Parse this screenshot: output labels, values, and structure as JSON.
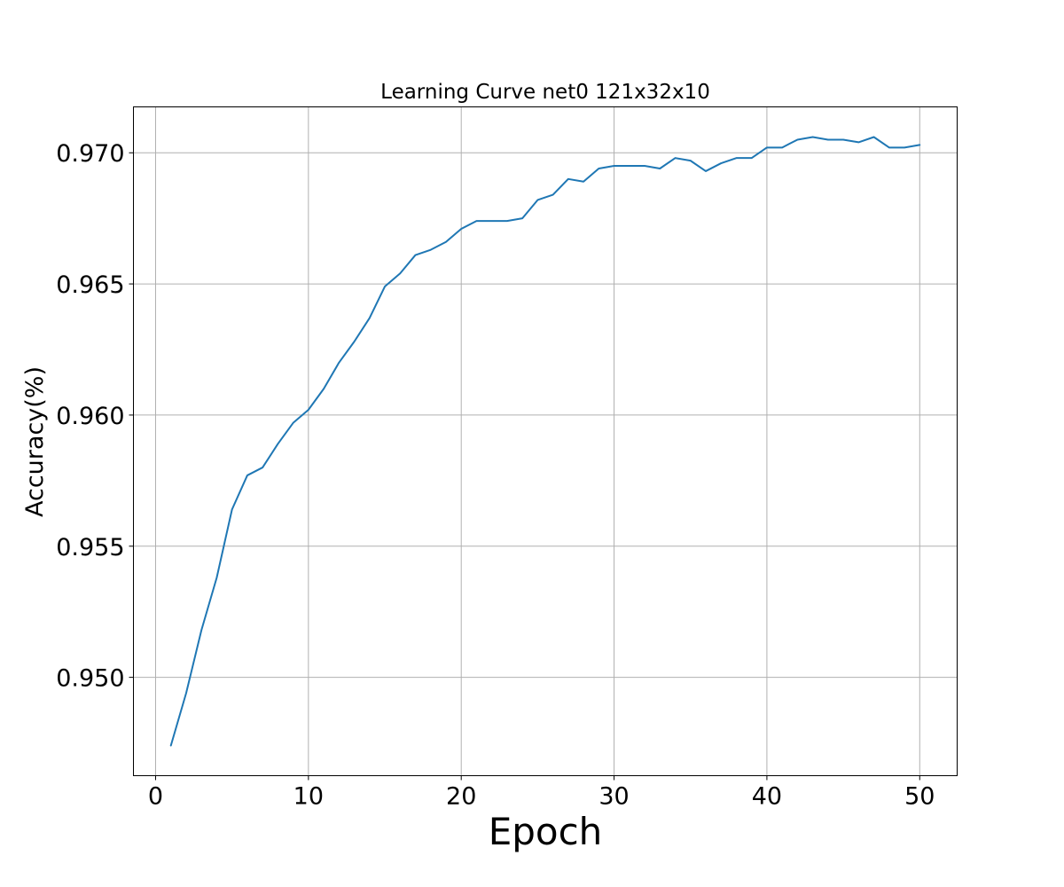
{
  "chart_data": {
    "type": "line",
    "title": "Learning Curve net0 121x32x10",
    "xlabel": "Epoch",
    "ylabel": "Accuracy(%)",
    "xlim": [
      -1.45,
      52.45
    ],
    "ylim": [
      0.94625,
      0.97175
    ],
    "xticks": [
      0,
      10,
      20,
      30,
      40,
      50
    ],
    "xtick_labels": [
      "0",
      "10",
      "20",
      "30",
      "40",
      "50"
    ],
    "yticks": [
      0.95,
      0.955,
      0.96,
      0.965,
      0.97
    ],
    "ytick_labels": [
      "0.950",
      "0.955",
      "0.960",
      "0.965",
      "0.970"
    ],
    "grid": true,
    "series": [
      {
        "color": "#1f77b4",
        "x": [
          1,
          2,
          3,
          4,
          5,
          6,
          7,
          8,
          9,
          10,
          11,
          12,
          13,
          14,
          15,
          16,
          17,
          18,
          19,
          20,
          21,
          22,
          23,
          24,
          25,
          26,
          27,
          28,
          29,
          30,
          31,
          32,
          33,
          34,
          35,
          36,
          37,
          38,
          39,
          40,
          41,
          42,
          43,
          44,
          45,
          46,
          47,
          48,
          49,
          50
        ],
        "values": [
          0.9474,
          0.9494,
          0.9518,
          0.9538,
          0.9564,
          0.9577,
          0.958,
          0.9589,
          0.9597,
          0.9602,
          0.961,
          0.962,
          0.9628,
          0.9637,
          0.9649,
          0.9654,
          0.9661,
          0.9663,
          0.9666,
          0.9671,
          0.9674,
          0.9674,
          0.9674,
          0.9675,
          0.9682,
          0.9684,
          0.969,
          0.9689,
          0.9694,
          0.9695,
          0.9695,
          0.9695,
          0.9694,
          0.9698,
          0.9697,
          0.9693,
          0.9696,
          0.9698,
          0.9698,
          0.9702,
          0.9702,
          0.9705,
          0.9706,
          0.9705,
          0.9705,
          0.9704,
          0.9706,
          0.9702,
          0.9702,
          0.9703
        ]
      }
    ]
  }
}
